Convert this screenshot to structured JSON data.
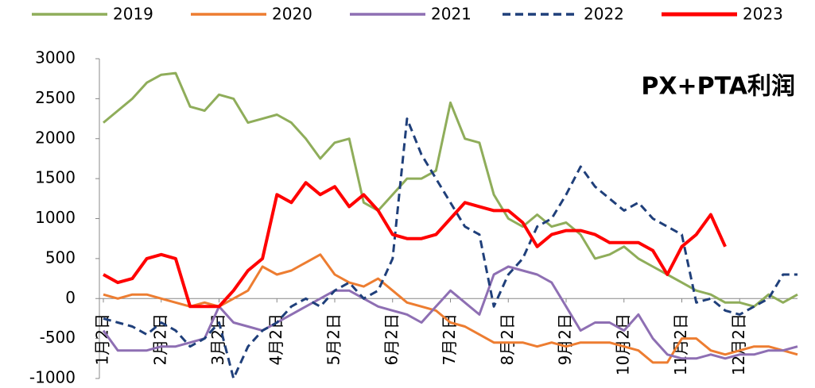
{
  "chart_data": {
    "type": "line",
    "annotation": "PX+PTA利润",
    "categories": [
      "1月2日",
      null,
      null,
      null,
      "2月2日",
      null,
      null,
      null,
      "3月2日",
      null,
      null,
      null,
      "4月2日",
      null,
      null,
      null,
      "5月2日",
      null,
      null,
      null,
      "6月2日",
      null,
      null,
      null,
      "7月2日",
      null,
      null,
      null,
      "8月2日",
      null,
      null,
      null,
      "9月2日",
      null,
      null,
      null,
      "10月2日",
      null,
      null,
      null,
      "11月2日",
      null,
      null,
      null,
      "12月2日",
      null,
      null,
      null,
      null
    ],
    "series": [
      {
        "name": "2019",
        "color": "#8fad5a",
        "dash": false,
        "values": [
          2200,
          2350,
          2500,
          2700,
          2800,
          2820,
          2400,
          2350,
          2550,
          2500,
          2200,
          2250,
          2300,
          2200,
          2000,
          1750,
          1950,
          2000,
          1200,
          1100,
          1300,
          1500,
          1500,
          1600,
          2450,
          2000,
          1950,
          1300,
          1000,
          900,
          1050,
          900,
          950,
          800,
          500,
          550,
          650,
          500,
          400,
          300,
          200,
          100,
          50,
          -50,
          -50,
          -100,
          50,
          -50,
          50
        ]
      },
      {
        "name": "2020",
        "color": "#ed7d31",
        "dash": false,
        "values": [
          50,
          0,
          50,
          50,
          0,
          -50,
          -100,
          -50,
          -100,
          0,
          100,
          400,
          300,
          350,
          450,
          550,
          300,
          200,
          150,
          250,
          100,
          -50,
          -100,
          -150,
          -300,
          -350,
          -450,
          -550,
          -550,
          -550,
          -600,
          -550,
          -600,
          -550,
          -550,
          -550,
          -600,
          -650,
          -800,
          -800,
          -500,
          -500,
          -650,
          -700,
          -650,
          -600,
          -600,
          -650,
          -700
        ]
      },
      {
        "name": "2021",
        "color": "#8e6fb3",
        "dash": false,
        "values": [
          -400,
          -650,
          -650,
          -650,
          -600,
          -600,
          -550,
          -500,
          -100,
          -300,
          -350,
          -400,
          -300,
          -200,
          -100,
          0,
          100,
          100,
          0,
          -100,
          -150,
          -200,
          -300,
          -100,
          100,
          -50,
          -200,
          300,
          400,
          350,
          300,
          200,
          -100,
          -400,
          -300,
          -300,
          -400,
          -200,
          -500,
          -700,
          -750,
          -750,
          -700,
          -750,
          -700,
          -700,
          -650,
          -650,
          -600
        ]
      },
      {
        "name": "2022",
        "color": "#1f3f7a",
        "dash": true,
        "values": [
          -250,
          -300,
          -350,
          -450,
          -300,
          -400,
          -600,
          -500,
          -300,
          -1000,
          -600,
          -400,
          -300,
          -100,
          0,
          -100,
          100,
          200,
          0,
          100,
          500,
          2250,
          1800,
          1500,
          1200,
          900,
          800,
          -100,
          300,
          500,
          900,
          1000,
          1300,
          1650,
          1400,
          1250,
          1100,
          1200,
          1000,
          900,
          800,
          -50,
          0,
          -150,
          -200,
          -100,
          0,
          300,
          300
        ]
      },
      {
        "name": "2023",
        "color": "#ff0000",
        "dash": false,
        "values": [
          300,
          200,
          250,
          500,
          550,
          500,
          -100,
          -100,
          -100,
          100,
          350,
          500,
          1300,
          1200,
          1450,
          1300,
          1400,
          1150,
          1300,
          1100,
          800,
          750,
          750,
          800,
          1000,
          1200,
          1150,
          1100,
          1100,
          950,
          650,
          800,
          850,
          850,
          800,
          700,
          700,
          700,
          600,
          300,
          650,
          800,
          1050,
          650,
          null,
          null,
          null,
          null,
          null
        ]
      }
    ],
    "ylim": [
      -1000,
      3000
    ],
    "yticks": [
      -1000,
      -500,
      0,
      500,
      1000,
      1500,
      2000,
      2500,
      3000
    ]
  }
}
